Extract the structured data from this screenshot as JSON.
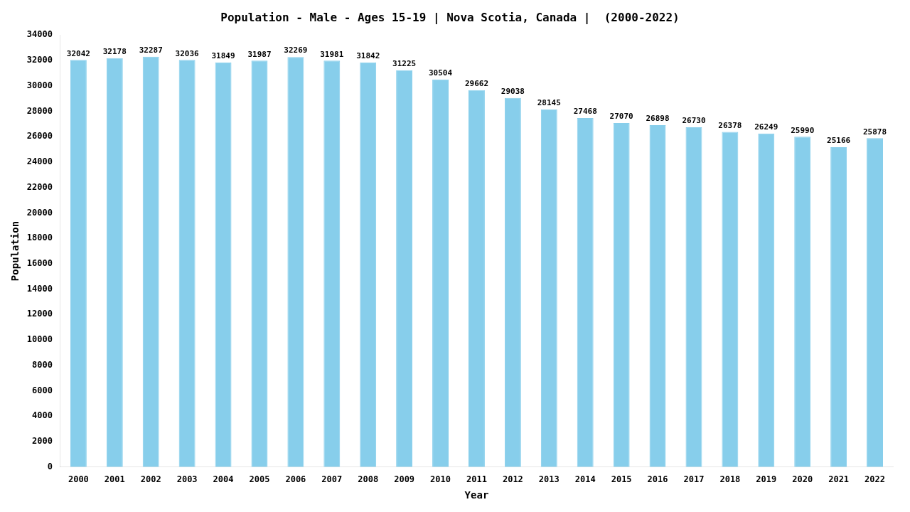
{
  "chart_data": {
    "type": "bar",
    "title": "Population - Male - Ages 15-19 | Nova Scotia, Canada |  (2000-2022)",
    "x_label": "Year",
    "y_label": "Population",
    "categories": [
      "2000",
      "2001",
      "2002",
      "2003",
      "2004",
      "2005",
      "2006",
      "2007",
      "2008",
      "2009",
      "2010",
      "2011",
      "2012",
      "2013",
      "2014",
      "2015",
      "2016",
      "2017",
      "2018",
      "2019",
      "2020",
      "2021",
      "2022"
    ],
    "values": [
      32042,
      32178,
      32287,
      32036,
      31849,
      31987,
      32269,
      31981,
      31842,
      31225,
      30504,
      29662,
      29038,
      28145,
      27468,
      27070,
      26898,
      26730,
      26378,
      26249,
      25990,
      25166,
      25878
    ],
    "color": "#87CEEB",
    "ylim": [
      0,
      34000
    ],
    "yticks": [
      0,
      2000,
      4000,
      6000,
      8000,
      10000,
      12000,
      14000,
      16000,
      18000,
      20000,
      22000,
      24000,
      26000,
      28000,
      30000,
      32000,
      34000
    ],
    "grid": false,
    "data_labels": true
  }
}
